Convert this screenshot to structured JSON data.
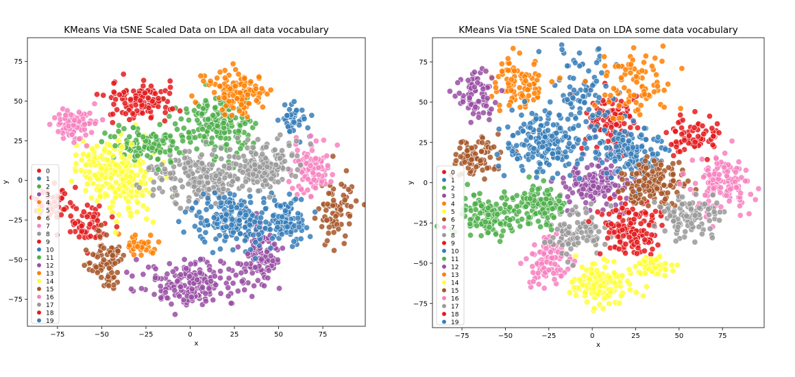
{
  "palette": [
    "#e41a1c",
    "#377eb8",
    "#4daf4a",
    "#984ea3",
    "#ff7f00",
    "#ffff33",
    "#a65628",
    "#f781bf",
    "#999999"
  ],
  "legend": {
    "placement": "lower-left",
    "labels": [
      "0",
      "1",
      "2",
      "3",
      "4",
      "5",
      "6",
      "7",
      "8",
      "9",
      "10",
      "11",
      "12",
      "13",
      "14",
      "15",
      "16",
      "17",
      "18",
      "19"
    ]
  },
  "chart_data": [
    {
      "type": "scatter",
      "title": "KMeans Via tSNE Scaled Data on LDA all data vocabulary",
      "xlabel": "x",
      "ylabel": "y",
      "xlim": [
        -92,
        99
      ],
      "ylim": [
        -92,
        90
      ],
      "xticks": [
        -75,
        -50,
        -25,
        0,
        25,
        50,
        75
      ],
      "yticks": [
        -75,
        -50,
        -25,
        0,
        25,
        50,
        75
      ],
      "grid": false,
      "clusters": [
        {
          "label": "0",
          "cx": -78,
          "cy": -15,
          "sx": 5,
          "sy": 5,
          "n": 45
        },
        {
          "label": "1",
          "cx": 58,
          "cy": 38,
          "sx": 4,
          "sy": 5,
          "n": 45
        },
        {
          "label": "2",
          "cx": 15,
          "cy": 35,
          "sx": 10,
          "sy": 9,
          "n": 200
        },
        {
          "label": "3",
          "cx": 40,
          "cy": -48,
          "sx": 5,
          "sy": 11,
          "n": 110
        },
        {
          "label": "4",
          "cx": -28,
          "cy": -40,
          "sx": 5,
          "sy": 4,
          "n": 35
        },
        {
          "label": "5",
          "cx": -38,
          "cy": 2,
          "sx": 10,
          "sy": 11,
          "n": 180
        },
        {
          "label": "6",
          "cx": 82,
          "cy": -18,
          "sx": 5,
          "sy": 9,
          "n": 70
        },
        {
          "label": "7",
          "cx": 68,
          "cy": 8,
          "sx": 6,
          "sy": 9,
          "n": 90
        },
        {
          "label": "8",
          "cx": 5,
          "cy": 2,
          "sx": 14,
          "sy": 8,
          "n": 200
        },
        {
          "label": "9",
          "cx": -60,
          "cy": -27,
          "sx": 6,
          "sy": 6,
          "n": 60
        },
        {
          "label": "10",
          "cx": 25,
          "cy": -25,
          "sx": 11,
          "sy": 8,
          "n": 200
        },
        {
          "label": "11",
          "cx": -25,
          "cy": 23,
          "sx": 10,
          "sy": 6,
          "n": 110
        },
        {
          "label": "12",
          "cx": 0,
          "cy": -65,
          "sx": 13,
          "sy": 7,
          "n": 180
        },
        {
          "label": "13",
          "cx": 25,
          "cy": 55,
          "sx": 9,
          "sy": 7,
          "n": 120
        },
        {
          "label": "14",
          "cx": -50,
          "cy": 10,
          "sx": 8,
          "sy": 6,
          "n": 60
        },
        {
          "label": "15",
          "cx": -48,
          "cy": -52,
          "sx": 5,
          "sy": 9,
          "n": 80
        },
        {
          "label": "16",
          "cx": -65,
          "cy": 35,
          "sx": 6,
          "sy": 5,
          "n": 80
        },
        {
          "label": "17",
          "cx": 40,
          "cy": 10,
          "sx": 10,
          "sy": 8,
          "n": 150
        },
        {
          "label": "18",
          "cx": -28,
          "cy": 50,
          "sx": 9,
          "sy": 6,
          "n": 110
        },
        {
          "label": "19",
          "cx": 55,
          "cy": -25,
          "sx": 6,
          "sy": 7,
          "n": 90
        }
      ]
    },
    {
      "type": "scatter",
      "title": "KMeans Via tSNE Scaled Data on LDA some data vocabulary",
      "xlabel": "x",
      "ylabel": "y",
      "xlim": [
        -92,
        99
      ],
      "ylim": [
        -90,
        90
      ],
      "xticks": [
        -75,
        -50,
        -25,
        0,
        25,
        50,
        75
      ],
      "yticks": [
        -75,
        -50,
        -25,
        0,
        25,
        50,
        75
      ],
      "grid": false,
      "clusters": [
        {
          "label": "0",
          "cx": 10,
          "cy": 40,
          "sx": 9,
          "sy": 8,
          "n": 100
        },
        {
          "label": "1",
          "cx": -5,
          "cy": 60,
          "sx": 10,
          "sy": 13,
          "n": 80
        },
        {
          "label": "2",
          "cx": -60,
          "cy": -20,
          "sx": 8,
          "sy": 7,
          "n": 130
        },
        {
          "label": "3",
          "cx": 2,
          "cy": 0,
          "sx": 9,
          "sy": 8,
          "n": 140
        },
        {
          "label": "4",
          "cx": -42,
          "cy": 60,
          "sx": 7,
          "sy": 8,
          "n": 90
        },
        {
          "label": "5",
          "cx": 5,
          "cy": -62,
          "sx": 8,
          "sy": 7,
          "n": 130
        },
        {
          "label": "6",
          "cx": -65,
          "cy": 15,
          "sx": 7,
          "sy": 7,
          "n": 80
        },
        {
          "label": "7",
          "cx": -25,
          "cy": -48,
          "sx": 6,
          "sy": 8,
          "n": 100
        },
        {
          "label": "8",
          "cx": -8,
          "cy": -30,
          "sx": 8,
          "sy": 7,
          "n": 100
        },
        {
          "label": "9",
          "cx": 22,
          "cy": -28,
          "sx": 8,
          "sy": 8,
          "n": 140
        },
        {
          "label": "10",
          "cx": 22,
          "cy": 20,
          "sx": 9,
          "sy": 8,
          "n": 140
        },
        {
          "label": "11",
          "cx": -30,
          "cy": -15,
          "sx": 8,
          "sy": 7,
          "n": 120
        },
        {
          "label": "12",
          "cx": -68,
          "cy": 55,
          "sx": 6,
          "sy": 7,
          "n": 70
        },
        {
          "label": "13",
          "cx": 25,
          "cy": 60,
          "sx": 10,
          "sy": 10,
          "n": 80
        },
        {
          "label": "14",
          "cx": 35,
          "cy": -52,
          "sx": 5,
          "sy": 4,
          "n": 50
        },
        {
          "label": "15",
          "cx": 35,
          "cy": 0,
          "sx": 9,
          "sy": 7,
          "n": 150
        },
        {
          "label": "16",
          "cx": 75,
          "cy": 0,
          "sx": 8,
          "sy": 9,
          "n": 120
        },
        {
          "label": "17",
          "cx": 55,
          "cy": -22,
          "sx": 8,
          "sy": 7,
          "n": 100
        },
        {
          "label": "18",
          "cx": 60,
          "cy": 30,
          "sx": 7,
          "sy": 6,
          "n": 70
        },
        {
          "label": "19",
          "cx": -28,
          "cy": 25,
          "sx": 11,
          "sy": 9,
          "n": 200
        }
      ]
    }
  ]
}
